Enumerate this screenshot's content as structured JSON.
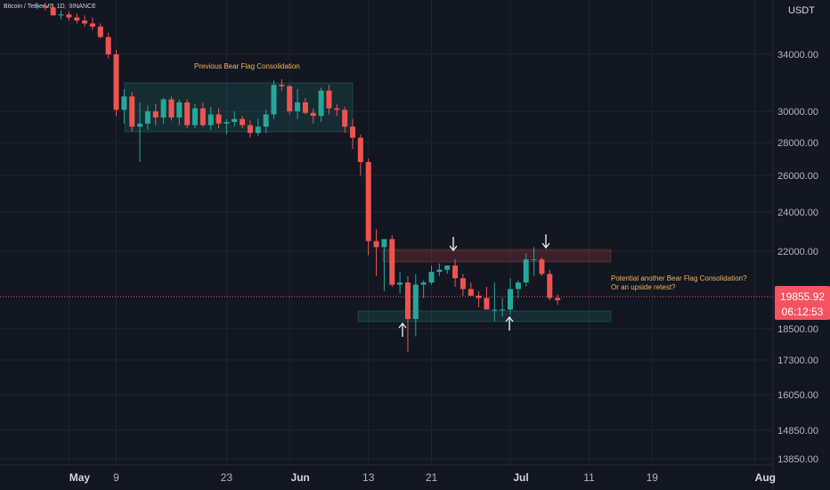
{
  "header": {
    "symbol": "Bitcoin / TetherUS, 1D, BINANCE",
    "currency": "USDT"
  },
  "colors": {
    "up": "#26a69a",
    "down": "#ef5350",
    "background": "#131722",
    "grid": "#1f2431",
    "annotation": "#f0b35c",
    "price_tag": "#f7525f"
  },
  "annotations": {
    "previous_flag": "Previous Bear Flag Consolidation",
    "question_line1": "Potential another Bear Flag Consolidation?",
    "question_line2": "Or an upside retest?"
  },
  "chart_data": {
    "type": "candlestick",
    "ylabel": "USDT",
    "y_ticks": [
      34000,
      30000,
      28000,
      26000,
      24000,
      22000,
      18500,
      17300,
      16050,
      14850,
      13850
    ],
    "x_ticks": [
      {
        "label": "May",
        "index": 4,
        "bold": true
      },
      {
        "label": "9",
        "index": 10
      },
      {
        "label": "23",
        "index": 24
      },
      {
        "label": "Jun",
        "index": 32,
        "bold": true
      },
      {
        "label": "13",
        "index": 42
      },
      {
        "label": "21",
        "index": 50
      },
      {
        "label": "Jul",
        "index": 60,
        "bold": true
      },
      {
        "label": "11",
        "index": 70
      },
      {
        "label": "19",
        "index": 78
      },
      {
        "label": "Aug",
        "index": 91,
        "bold": true
      }
    ],
    "last_price": "19855.92",
    "countdown": "06:12:53",
    "candles": [
      [
        38600,
        39000,
        38300,
        38700
      ],
      [
        38700,
        39100,
        38200,
        38500
      ],
      [
        38500,
        38900,
        37800,
        37700
      ],
      [
        37700,
        38200,
        37300,
        37800
      ],
      [
        37800,
        38100,
        37200,
        37500
      ],
      [
        37500,
        37900,
        36900,
        37200
      ],
      [
        37200,
        37700,
        36600,
        36900
      ],
      [
        36900,
        37500,
        36300,
        36600
      ],
      [
        36600,
        36900,
        35500,
        35600
      ],
      [
        35600,
        36000,
        33700,
        34000
      ],
      [
        34000,
        34400,
        29700,
        30100
      ],
      [
        30100,
        31500,
        29200,
        31000
      ],
      [
        31000,
        31300,
        28700,
        29000
      ],
      [
        29000,
        30600,
        26800,
        29200
      ],
      [
        29200,
        30400,
        28800,
        30000
      ],
      [
        30000,
        30500,
        29100,
        29600
      ],
      [
        29600,
        30900,
        29200,
        30800
      ],
      [
        30800,
        31000,
        29400,
        29600
      ],
      [
        29600,
        30800,
        29100,
        30600
      ],
      [
        30600,
        30800,
        28900,
        29100
      ],
      [
        29100,
        30500,
        28900,
        30200
      ],
      [
        30200,
        30600,
        29000,
        29100
      ],
      [
        29100,
        30300,
        28800,
        29800
      ],
      [
        29800,
        30200,
        28900,
        29200
      ],
      [
        29200,
        29500,
        28500,
        29300
      ],
      [
        29300,
        30000,
        29000,
        29500
      ],
      [
        29500,
        29700,
        28900,
        29100
      ],
      [
        29100,
        29400,
        28300,
        28600
      ],
      [
        28600,
        29500,
        28400,
        29000
      ],
      [
        29000,
        30100,
        28600,
        29800
      ],
      [
        29800,
        32100,
        29500,
        31800
      ],
      [
        31800,
        32200,
        31400,
        31700
      ],
      [
        31700,
        31800,
        29800,
        30000
      ],
      [
        30000,
        31500,
        29500,
        30600
      ],
      [
        30600,
        30900,
        29800,
        29900
      ],
      [
        29900,
        30200,
        29200,
        29700
      ],
      [
        29700,
        31600,
        29300,
        31400
      ],
      [
        31400,
        31800,
        29800,
        30200
      ],
      [
        30200,
        30500,
        29700,
        30100
      ],
      [
        30100,
        30300,
        28600,
        29000
      ],
      [
        29000,
        29500,
        27600,
        28300
      ],
      [
        28300,
        28500,
        26000,
        26800
      ],
      [
        26800,
        27000,
        21800,
        22500
      ],
      [
        22500,
        23100,
        20800,
        22200
      ],
      [
        22200,
        22500,
        20100,
        22600
      ],
      [
        22600,
        22800,
        20300,
        20400
      ],
      [
        20400,
        21000,
        20000,
        20500
      ],
      [
        20500,
        20800,
        17600,
        18900
      ],
      [
        18900,
        20900,
        18200,
        20400
      ],
      [
        20400,
        20600,
        19800,
        20500
      ],
      [
        20500,
        21300,
        20400,
        21000
      ],
      [
        21000,
        21400,
        20800,
        21100
      ],
      [
        21100,
        21300,
        20900,
        21300
      ],
      [
        21300,
        21600,
        20300,
        20700
      ],
      [
        20700,
        20900,
        19900,
        20200
      ],
      [
        20200,
        20500,
        19900,
        19900
      ],
      [
        19900,
        20100,
        19400,
        19800
      ],
      [
        19800,
        20300,
        19400,
        19300
      ],
      [
        19300,
        20500,
        18800,
        19300
      ],
      [
        19300,
        19800,
        19000,
        19300
      ],
      [
        19300,
        20700,
        19100,
        20200
      ],
      [
        20200,
        20600,
        19800,
        20500
      ],
      [
        20500,
        21900,
        20300,
        21600
      ],
      [
        21600,
        22200,
        20800,
        21600
      ],
      [
        21600,
        21700,
        20800,
        20900
      ],
      [
        20900,
        21100,
        19700,
        19800
      ],
      [
        19800,
        19950,
        19500,
        19700
      ]
    ]
  }
}
